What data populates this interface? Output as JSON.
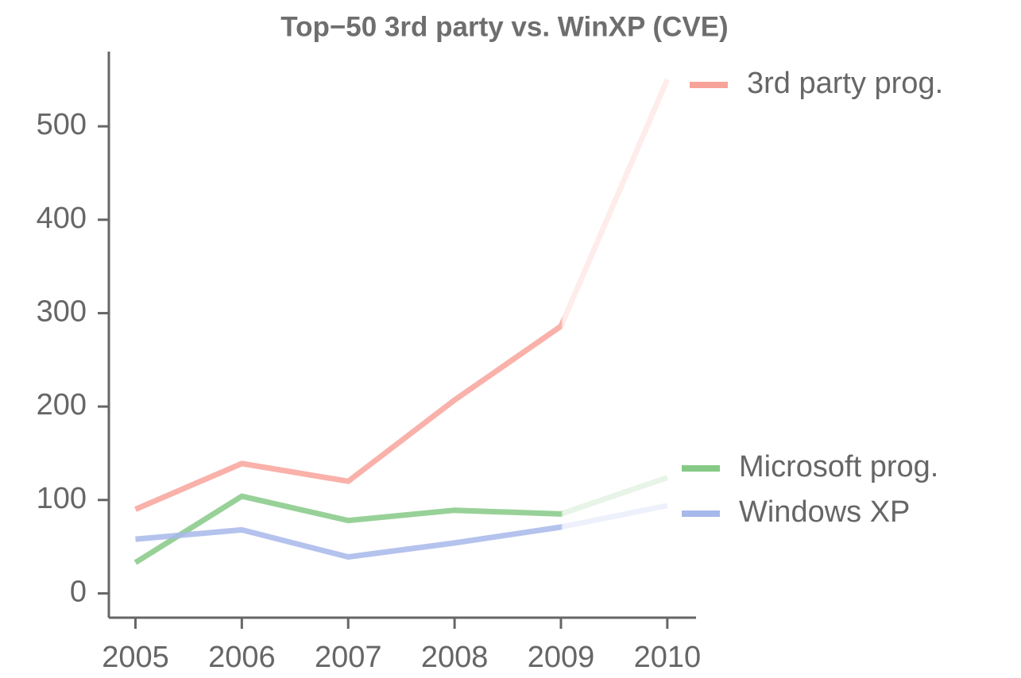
{
  "chart_data": {
    "type": "line",
    "title": "Top−50 3rd party vs. WinXP (CVE)",
    "x": [
      2005,
      2006,
      2007,
      2008,
      2009,
      2010
    ],
    "series": [
      {
        "name": "3rd party prog.",
        "color": "#f8a39a",
        "values": [
          90,
          139,
          120,
          207,
          286,
          550
        ]
      },
      {
        "name": "Microsoft prog.",
        "color": "#86c986",
        "values": [
          33,
          104,
          78,
          89,
          85,
          124
        ]
      },
      {
        "name": "Windows XP",
        "color": "#a7b8ea",
        "values": [
          58,
          68,
          39,
          54,
          71,
          94
        ]
      }
    ],
    "xlim": [
      2004.75,
      2010.27
    ],
    "xticks": [
      2005,
      2006,
      2007,
      2008,
      2009,
      2010
    ],
    "ylim": [
      -26,
      580
    ],
    "yticks": [
      0,
      100,
      200,
      300,
      400,
      500
    ],
    "grid": false
  }
}
